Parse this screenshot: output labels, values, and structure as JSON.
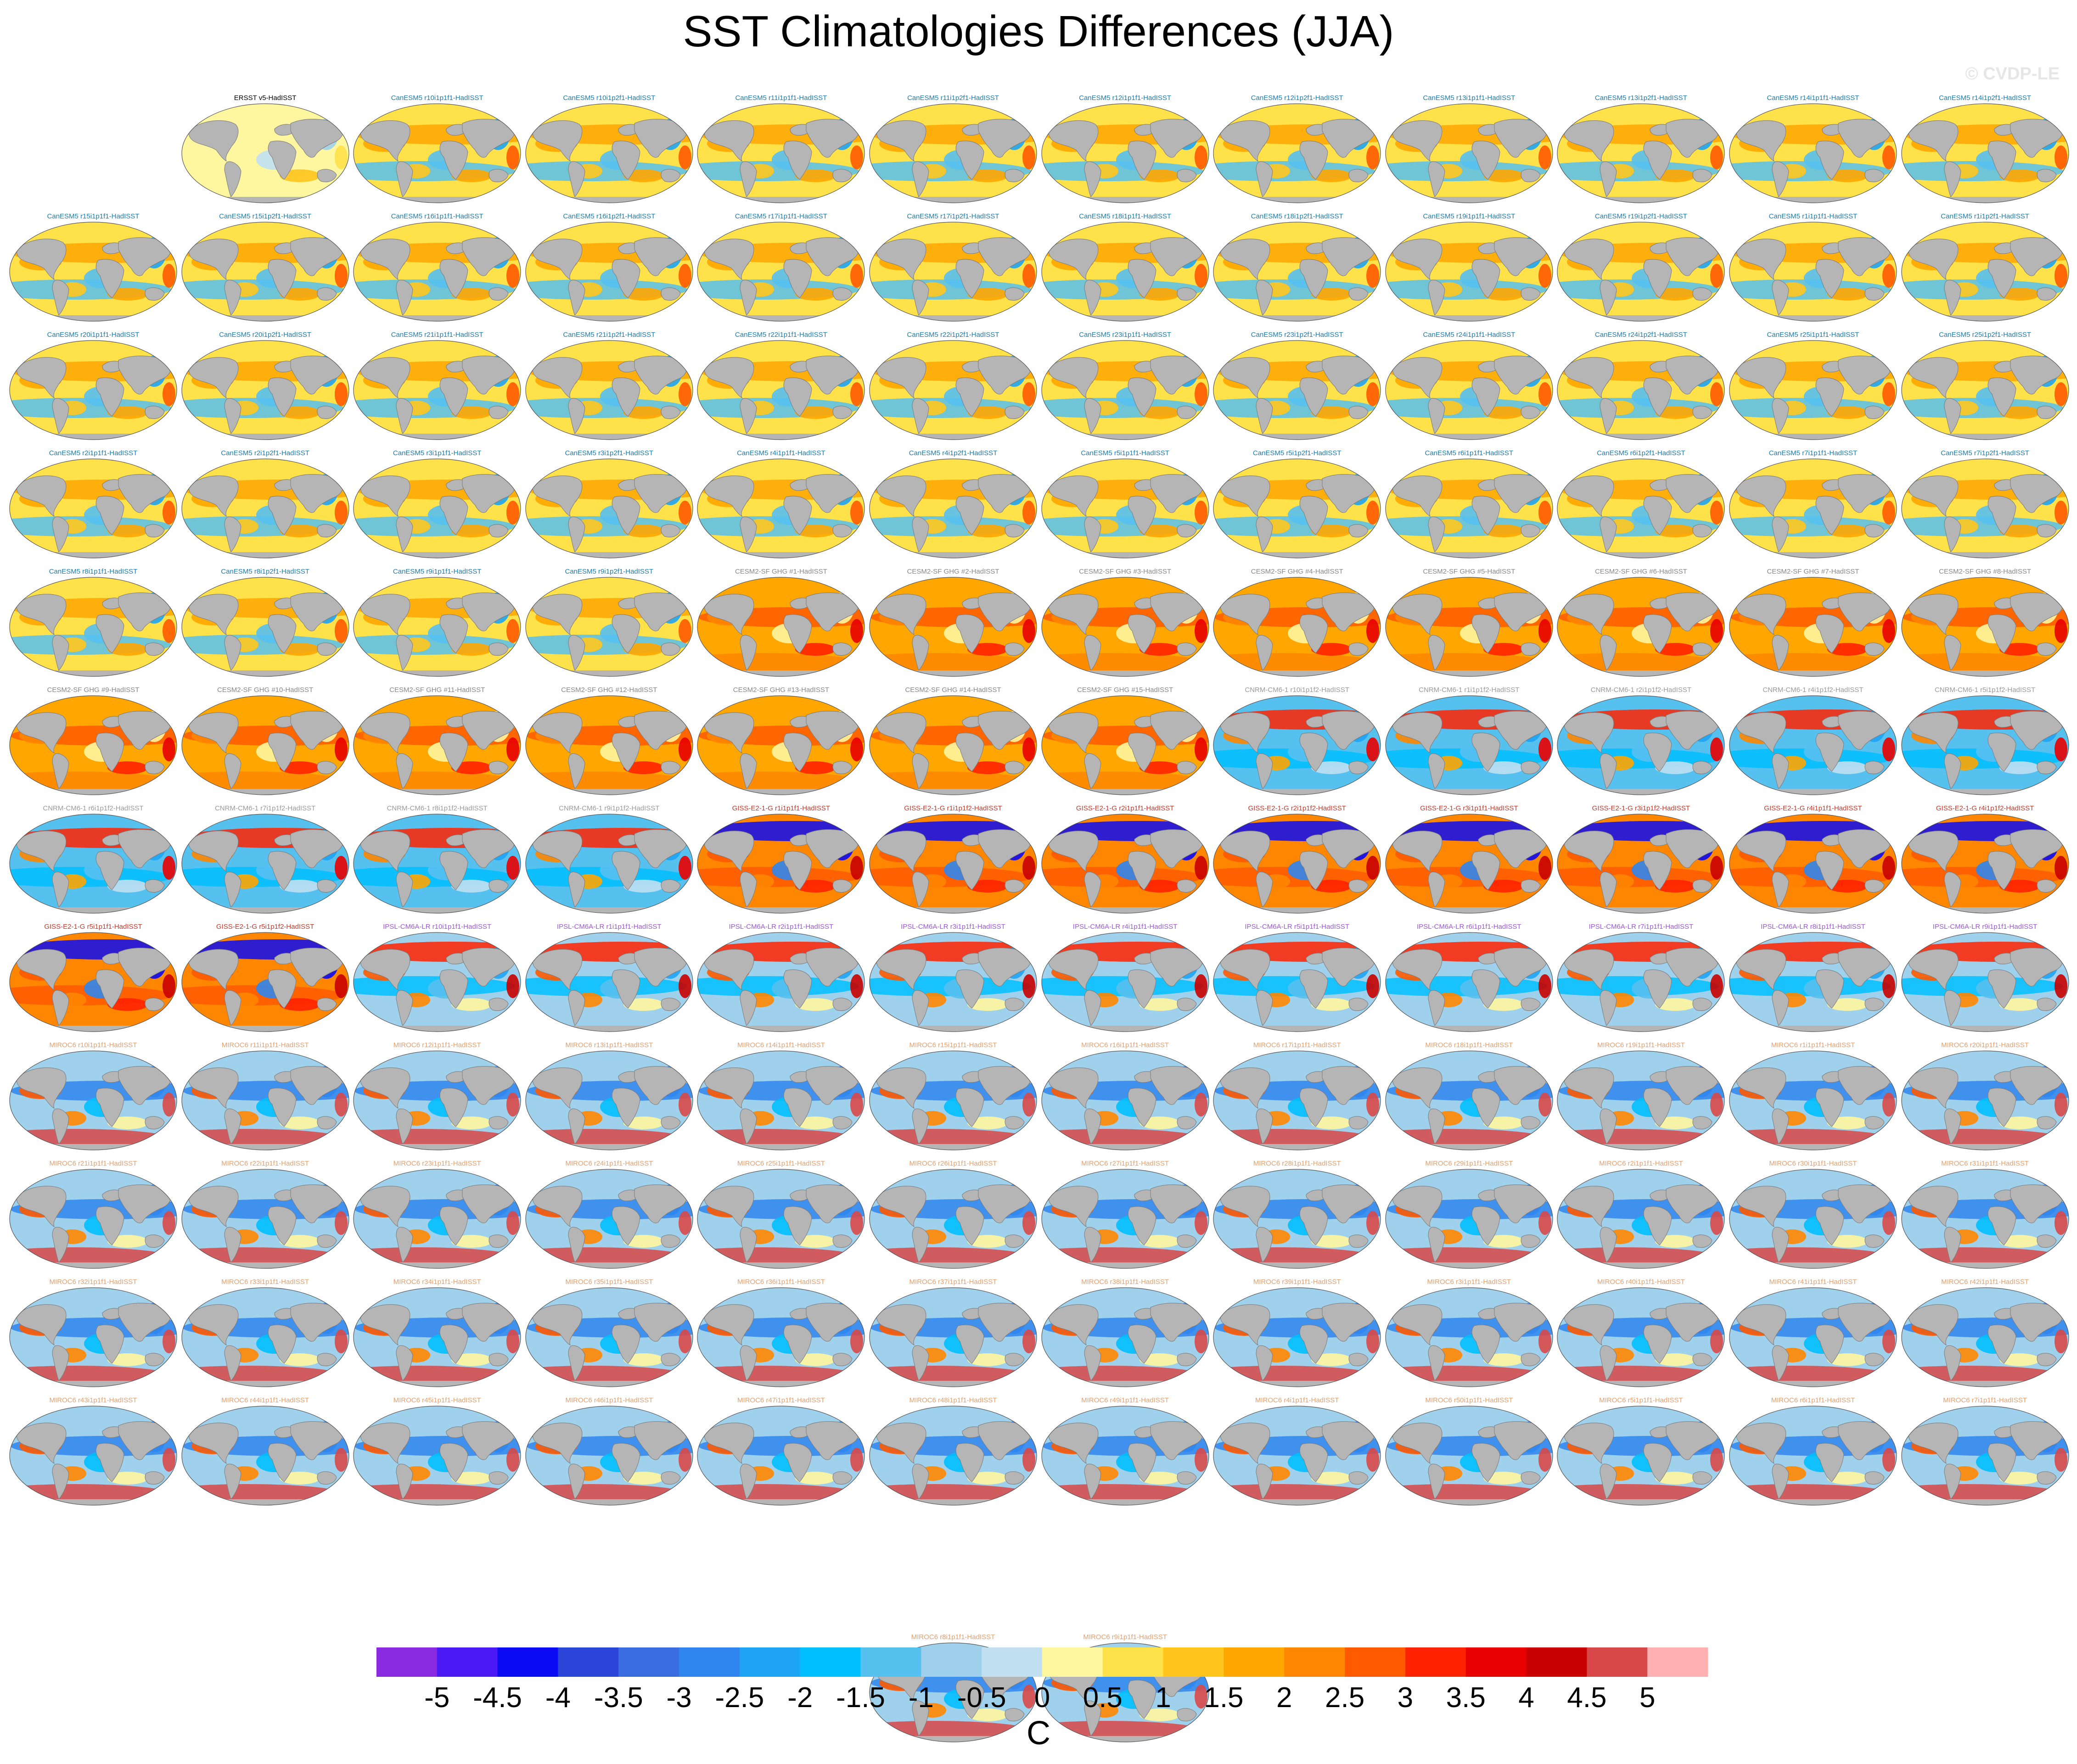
{
  "title": "SST Climatologies Differences (JJA)",
  "watermark": "© CVDP-LE",
  "chart_data": {
    "type": "heatmap",
    "title": "SST Climatologies Differences (JJA)",
    "units": "C",
    "colorbar": {
      "ticks": [
        "-5",
        "-4.5",
        "-4",
        "-3.5",
        "-3",
        "-2.5",
        "-2",
        "-1.5",
        "-1",
        "-0.5",
        "0",
        "0.5",
        "1",
        "1.5",
        "2",
        "2.5",
        "3",
        "3.5",
        "4",
        "4.5",
        "5"
      ],
      "colors": [
        "#8a2be2",
        "#4b19f5",
        "#0a0af5",
        "#2a45d8",
        "#3a6ee0",
        "#2f86ee",
        "#1ea4f5",
        "#00bfff",
        "#56c0ef",
        "#9fd0ec",
        "#c0e0f2",
        "#fff6a0",
        "#ffe14a",
        "#ffc51c",
        "#ffa600",
        "#ff8600",
        "#ff5a00",
        "#ff2200",
        "#e80000",
        "#c80000",
        "#d84848",
        "#ffb0b0"
      ]
    },
    "panels": [
      {
        "label": "ERSST v5-HadISST",
        "group": "ERSST"
      },
      {
        "label": "CanESM5 r10i1p1f1-HadISST",
        "group": "CanESM5"
      },
      {
        "label": "CanESM5 r10i1p2f1-HadISST",
        "group": "CanESM5"
      },
      {
        "label": "CanESM5 r11i1p1f1-HadISST",
        "group": "CanESM5"
      },
      {
        "label": "CanESM5 r11i1p2f1-HadISST",
        "group": "CanESM5"
      },
      {
        "label": "CanESM5 r12i1p1f1-HadISST",
        "group": "CanESM5"
      },
      {
        "label": "CanESM5 r12i1p2f1-HadISST",
        "group": "CanESM5"
      },
      {
        "label": "CanESM5 r13i1p1f1-HadISST",
        "group": "CanESM5"
      },
      {
        "label": "CanESM5 r13i1p2f1-HadISST",
        "group": "CanESM5"
      },
      {
        "label": "CanESM5 r14i1p1f1-HadISST",
        "group": "CanESM5"
      },
      {
        "label": "CanESM5 r14i1p2f1-HadISST",
        "group": "CanESM5"
      },
      {
        "label": "CanESM5 r15i1p1f1-HadISST",
        "group": "CanESM5"
      },
      {
        "label": "CanESM5 r15i1p2f1-HadISST",
        "group": "CanESM5"
      },
      {
        "label": "CanESM5 r16i1p1f1-HadISST",
        "group": "CanESM5"
      },
      {
        "label": "CanESM5 r16i1p2f1-HadISST",
        "group": "CanESM5"
      },
      {
        "label": "CanESM5 r17i1p1f1-HadISST",
        "group": "CanESM5"
      },
      {
        "label": "CanESM5 r17i1p2f1-HadISST",
        "group": "CanESM5"
      },
      {
        "label": "CanESM5 r18i1p1f1-HadISST",
        "group": "CanESM5"
      },
      {
        "label": "CanESM5 r18i1p2f1-HadISST",
        "group": "CanESM5"
      },
      {
        "label": "CanESM5 r19i1p1f1-HadISST",
        "group": "CanESM5"
      },
      {
        "label": "CanESM5 r19i1p2f1-HadISST",
        "group": "CanESM5"
      },
      {
        "label": "CanESM5 r1i1p1f1-HadISST",
        "group": "CanESM5"
      },
      {
        "label": "CanESM5 r1i1p2f1-HadISST",
        "group": "CanESM5"
      },
      {
        "label": "CanESM5 r20i1p1f1-HadISST",
        "group": "CanESM5"
      },
      {
        "label": "CanESM5 r20i1p2f1-HadISST",
        "group": "CanESM5"
      },
      {
        "label": "CanESM5 r21i1p1f1-HadISST",
        "group": "CanESM5"
      },
      {
        "label": "CanESM5 r21i1p2f1-HadISST",
        "group": "CanESM5"
      },
      {
        "label": "CanESM5 r22i1p1f1-HadISST",
        "group": "CanESM5"
      },
      {
        "label": "CanESM5 r22i1p2f1-HadISST",
        "group": "CanESM5"
      },
      {
        "label": "CanESM5 r23i1p1f1-HadISST",
        "group": "CanESM5"
      },
      {
        "label": "CanESM5 r23i1p2f1-HadISST",
        "group": "CanESM5"
      },
      {
        "label": "CanESM5 r24i1p1f1-HadISST",
        "group": "CanESM5"
      },
      {
        "label": "CanESM5 r24i1p2f1-HadISST",
        "group": "CanESM5"
      },
      {
        "label": "CanESM5 r25i1p1f1-HadISST",
        "group": "CanESM5"
      },
      {
        "label": "CanESM5 r25i1p2f1-HadISST",
        "group": "CanESM5"
      },
      {
        "label": "CanESM5 r2i1p1f1-HadISST",
        "group": "CanESM5"
      },
      {
        "label": "CanESM5 r2i1p2f1-HadISST",
        "group": "CanESM5"
      },
      {
        "label": "CanESM5 r3i1p1f1-HadISST",
        "group": "CanESM5"
      },
      {
        "label": "CanESM5 r3i1p2f1-HadISST",
        "group": "CanESM5"
      },
      {
        "label": "CanESM5 r4i1p1f1-HadISST",
        "group": "CanESM5"
      },
      {
        "label": "CanESM5 r4i1p2f1-HadISST",
        "group": "CanESM5"
      },
      {
        "label": "CanESM5 r5i1p1f1-HadISST",
        "group": "CanESM5"
      },
      {
        "label": "CanESM5 r5i1p2f1-HadISST",
        "group": "CanESM5"
      },
      {
        "label": "CanESM5 r6i1p1f1-HadISST",
        "group": "CanESM5"
      },
      {
        "label": "CanESM5 r6i1p2f1-HadISST",
        "group": "CanESM5"
      },
      {
        "label": "CanESM5 r7i1p1f1-HadISST",
        "group": "CanESM5"
      },
      {
        "label": "CanESM5 r7i1p2f1-HadISST",
        "group": "CanESM5"
      },
      {
        "label": "CanESM5 r8i1p1f1-HadISST",
        "group": "CanESM5"
      },
      {
        "label": "CanESM5 r8i1p2f1-HadISST",
        "group": "CanESM5"
      },
      {
        "label": "CanESM5 r9i1p1f1-HadISST",
        "group": "CanESM5"
      },
      {
        "label": "CanESM5 r9i1p2f1-HadISST",
        "group": "CanESM5"
      },
      {
        "label": "CESM2-SF GHG #1-HadISST",
        "group": "CESM2"
      },
      {
        "label": "CESM2-SF GHG #2-HadISST",
        "group": "CESM2"
      },
      {
        "label": "CESM2-SF GHG #3-HadISST",
        "group": "CESM2"
      },
      {
        "label": "CESM2-SF GHG #4-HadISST",
        "group": "CESM2"
      },
      {
        "label": "CESM2-SF GHG #5-HadISST",
        "group": "CESM2"
      },
      {
        "label": "CESM2-SF GHG #6-HadISST",
        "group": "CESM2"
      },
      {
        "label": "CESM2-SF GHG #7-HadISST",
        "group": "CESM2"
      },
      {
        "label": "CESM2-SF GHG #8-HadISST",
        "group": "CESM2"
      },
      {
        "label": "CESM2-SF GHG #9-HadISST",
        "group": "CESM2"
      },
      {
        "label": "CESM2-SF GHG #10-HadISST",
        "group": "CESM2"
      },
      {
        "label": "CESM2-SF GHG #11-HadISST",
        "group": "CESM2"
      },
      {
        "label": "CESM2-SF GHG #12-HadISST",
        "group": "CESM2"
      },
      {
        "label": "CESM2-SF GHG #13-HadISST",
        "group": "CESM2"
      },
      {
        "label": "CESM2-SF GHG #14-HadISST",
        "group": "CESM2"
      },
      {
        "label": "CESM2-SF GHG #15-HadISST",
        "group": "CESM2"
      },
      {
        "label": "CNRM-CM6-1 r10i1p1f2-HadISST",
        "group": "CNRM"
      },
      {
        "label": "CNRM-CM6-1 r1i1p1f2-HadISST",
        "group": "CNRM"
      },
      {
        "label": "CNRM-CM6-1 r2i1p1f2-HadISST",
        "group": "CNRM"
      },
      {
        "label": "CNRM-CM6-1 r4i1p1f2-HadISST",
        "group": "CNRM"
      },
      {
        "label": "CNRM-CM6-1 r5i1p1f2-HadISST",
        "group": "CNRM"
      },
      {
        "label": "CNRM-CM6-1 r6i1p1f2-HadISST",
        "group": "CNRM"
      },
      {
        "label": "CNRM-CM6-1 r7i1p1f2-HadISST",
        "group": "CNRM"
      },
      {
        "label": "CNRM-CM6-1 r8i1p1f2-HadISST",
        "group": "CNRM"
      },
      {
        "label": "CNRM-CM6-1 r9i1p1f2-HadISST",
        "group": "CNRM"
      },
      {
        "label": "GISS-E2-1-G r1i1p1f1-HadISST",
        "group": "GISS"
      },
      {
        "label": "GISS-E2-1-G r1i1p1f2-HadISST",
        "group": "GISS"
      },
      {
        "label": "GISS-E2-1-G r2i1p1f1-HadISST",
        "group": "GISS"
      },
      {
        "label": "GISS-E2-1-G r2i1p1f2-HadISST",
        "group": "GISS"
      },
      {
        "label": "GISS-E2-1-G r3i1p1f1-HadISST",
        "group": "GISS"
      },
      {
        "label": "GISS-E2-1-G r3i1p1f2-HadISST",
        "group": "GISS"
      },
      {
        "label": "GISS-E2-1-G r4i1p1f1-HadISST",
        "group": "GISS"
      },
      {
        "label": "GISS-E2-1-G r4i1p1f2-HadISST",
        "group": "GISS"
      },
      {
        "label": "GISS-E2-1-G r5i1p1f1-HadISST",
        "group": "GISS"
      },
      {
        "label": "GISS-E2-1-G r5i1p1f2-HadISST",
        "group": "GISS"
      },
      {
        "label": "IPSL-CM6A-LR r10i1p1f1-HadISST",
        "group": "IPSL"
      },
      {
        "label": "IPSL-CM6A-LR r1i1p1f1-HadISST",
        "group": "IPSL"
      },
      {
        "label": "IPSL-CM6A-LR r2i1p1f1-HadISST",
        "group": "IPSL"
      },
      {
        "label": "IPSL-CM6A-LR r3i1p1f1-HadISST",
        "group": "IPSL"
      },
      {
        "label": "IPSL-CM6A-LR r4i1p1f1-HadISST",
        "group": "IPSL"
      },
      {
        "label": "IPSL-CM6A-LR r5i1p1f1-HadISST",
        "group": "IPSL"
      },
      {
        "label": "IPSL-CM6A-LR r6i1p1f1-HadISST",
        "group": "IPSL"
      },
      {
        "label": "IPSL-CM6A-LR r7i1p1f1-HadISST",
        "group": "IPSL"
      },
      {
        "label": "IPSL-CM6A-LR r8i1p1f1-HadISST",
        "group": "IPSL"
      },
      {
        "label": "IPSL-CM6A-LR r9i1p1f1-HadISST",
        "group": "IPSL"
      },
      {
        "label": "MIROC6 r10i1p1f1-HadISST",
        "group": "MIROC6"
      },
      {
        "label": "MIROC6 r11i1p1f1-HadISST",
        "group": "MIROC6"
      },
      {
        "label": "MIROC6 r12i1p1f1-HadISST",
        "group": "MIROC6"
      },
      {
        "label": "MIROC6 r13i1p1f1-HadISST",
        "group": "MIROC6"
      },
      {
        "label": "MIROC6 r14i1p1f1-HadISST",
        "group": "MIROC6"
      },
      {
        "label": "MIROC6 r15i1p1f1-HadISST",
        "group": "MIROC6"
      },
      {
        "label": "MIROC6 r16i1p1f1-HadISST",
        "group": "MIROC6"
      },
      {
        "label": "MIROC6 r17i1p1f1-HadISST",
        "group": "MIROC6"
      },
      {
        "label": "MIROC6 r18i1p1f1-HadISST",
        "group": "MIROC6"
      },
      {
        "label": "MIROC6 r19i1p1f1-HadISST",
        "group": "MIROC6"
      },
      {
        "label": "MIROC6 r1i1p1f1-HadISST",
        "group": "MIROC6"
      },
      {
        "label": "MIROC6 r20i1p1f1-HadISST",
        "group": "MIROC6"
      },
      {
        "label": "MIROC6 r21i1p1f1-HadISST",
        "group": "MIROC6"
      },
      {
        "label": "MIROC6 r22i1p1f1-HadISST",
        "group": "MIROC6"
      },
      {
        "label": "MIROC6 r23i1p1f1-HadISST",
        "group": "MIROC6"
      },
      {
        "label": "MIROC6 r24i1p1f1-HadISST",
        "group": "MIROC6"
      },
      {
        "label": "MIROC6 r25i1p1f1-HadISST",
        "group": "MIROC6"
      },
      {
        "label": "MIROC6 r26i1p1f1-HadISST",
        "group": "MIROC6"
      },
      {
        "label": "MIROC6 r27i1p1f1-HadISST",
        "group": "MIROC6"
      },
      {
        "label": "MIROC6 r28i1p1f1-HadISST",
        "group": "MIROC6"
      },
      {
        "label": "MIROC6 r29i1p1f1-HadISST",
        "group": "MIROC6"
      },
      {
        "label": "MIROC6 r2i1p1f1-HadISST",
        "group": "MIROC6"
      },
      {
        "label": "MIROC6 r30i1p1f1-HadISST",
        "group": "MIROC6"
      },
      {
        "label": "MIROC6 r31i1p1f1-HadISST",
        "group": "MIROC6"
      },
      {
        "label": "MIROC6 r32i1p1f1-HadISST",
        "group": "MIROC6"
      },
      {
        "label": "MIROC6 r33i1p1f1-HadISST",
        "group": "MIROC6"
      },
      {
        "label": "MIROC6 r34i1p1f1-HadISST",
        "group": "MIROC6"
      },
      {
        "label": "MIROC6 r35i1p1f1-HadISST",
        "group": "MIROC6"
      },
      {
        "label": "MIROC6 r36i1p1f1-HadISST",
        "group": "MIROC6"
      },
      {
        "label": "MIROC6 r37i1p1f1-HadISST",
        "group": "MIROC6"
      },
      {
        "label": "MIROC6 r38i1p1f1-HadISST",
        "group": "MIROC6"
      },
      {
        "label": "MIROC6 r39i1p1f1-HadISST",
        "group": "MIROC6"
      },
      {
        "label": "MIROC6 r3i1p1f1-HadISST",
        "group": "MIROC6"
      },
      {
        "label": "MIROC6 r40i1p1f1-HadISST",
        "group": "MIROC6"
      },
      {
        "label": "MIROC6 r41i1p1f1-HadISST",
        "group": "MIROC6"
      },
      {
        "label": "MIROC6 r42i1p1f1-HadISST",
        "group": "MIROC6"
      },
      {
        "label": "MIROC6 r43i1p1f1-HadISST",
        "group": "MIROC6"
      },
      {
        "label": "MIROC6 r44i1p1f1-HadISST",
        "group": "MIROC6"
      },
      {
        "label": "MIROC6 r45i1p1f1-HadISST",
        "group": "MIROC6"
      },
      {
        "label": "MIROC6 r46i1p1f1-HadISST",
        "group": "MIROC6"
      },
      {
        "label": "MIROC6 r47i1p1f1-HadISST",
        "group": "MIROC6"
      },
      {
        "label": "MIROC6 r48i1p1f1-HadISST",
        "group": "MIROC6"
      },
      {
        "label": "MIROC6 r49i1p1f1-HadISST",
        "group": "MIROC6"
      },
      {
        "label": "MIROC6 r4i1p1f1-HadISST",
        "group": "MIROC6"
      },
      {
        "label": "MIROC6 r50i1p1f1-HadISST",
        "group": "MIROC6"
      },
      {
        "label": "MIROC6 r5i1p1f1-HadISST",
        "group": "MIROC6"
      },
      {
        "label": "MIROC6 r6i1p1f1-HadISST",
        "group": "MIROC6"
      },
      {
        "label": "MIROC6 r7i1p1f1-HadISST",
        "group": "MIROC6"
      },
      {
        "label": "MIROC6 r8i1p1f1-HadISST",
        "group": "MIROC6"
      },
      {
        "label": "MIROC6 r9i1p1f1-HadISST",
        "group": "MIROC6"
      }
    ],
    "group_colors": {
      "ERSST": "#000000",
      "CanESM5": "#1f7aa8",
      "CESM2": "#888888",
      "CNRM": "#9a9a9a",
      "GISS": "#c0392b",
      "IPSL": "#9b59d0",
      "MIROC6": "#e0a070"
    }
  }
}
